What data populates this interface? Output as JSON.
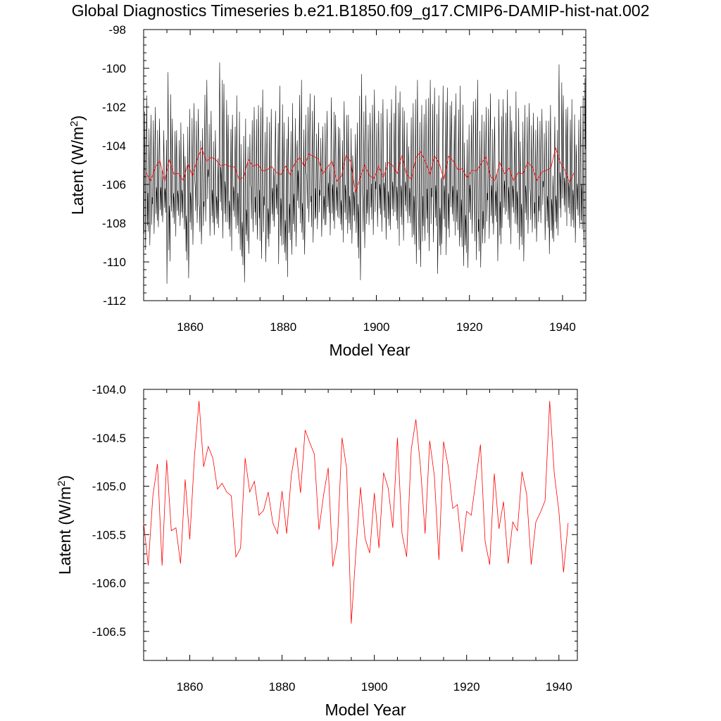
{
  "title": "Global Diagnostics Timeseries b.e21.B1850.f09_g17.CMIP6-DAMIP-hist-nat.002",
  "colors": {
    "monthly": "#000000",
    "annual": "#ff0000"
  },
  "chart_data": [
    {
      "type": "line",
      "xlabel": "Model Year",
      "ylabel": "Latent (W/m",
      "ylabel_sup": "2",
      "ylabel_end": ")",
      "xlim": [
        1850,
        1945
      ],
      "ylim": [
        -112,
        -98
      ],
      "xticks": [
        1860,
        1880,
        1900,
        1920,
        1940
      ],
      "xtick_labels": [
        "1860",
        "1880",
        "1900",
        "1920",
        "1940"
      ],
      "yticks": [
        -98,
        -100,
        -102,
        -104,
        -106,
        -108,
        -110,
        -112
      ],
      "ytick_labels": [
        "-98",
        "-100",
        "-102",
        "-104",
        "-106",
        "-108",
        "-110",
        "-112"
      ],
      "series": [
        {
          "kind": "monthly",
          "color": "#000000",
          "monthly_min_by_year": [
            -109.8,
            -109.5,
            -108.9,
            -108.5,
            -108.2,
            -111.7,
            -109.0,
            -108.4,
            -108.6,
            -111.3,
            -109.5,
            -108.3,
            -109.4,
            -108.3,
            -109.0,
            -108.9,
            -108.7,
            -109.2,
            -109.8,
            -108.6,
            -109.8,
            -111.5,
            -109.9,
            -108.8,
            -109.2,
            -110.3,
            -110.4,
            -108.9,
            -108.5,
            -110.6,
            -111.2,
            -110.0,
            -109.6,
            -108.4,
            -110.0,
            -108.3,
            -109.4,
            -108.6,
            -109.0,
            -108.4,
            -109.0,
            -108.6,
            -109.3,
            -108.9,
            -109.4,
            -108.8,
            -111.5,
            -109.7,
            -108.4,
            -109.0,
            -108.5,
            -108.8,
            -109.2,
            -108.7,
            -109.6,
            -109.3,
            -108.3,
            -109.1,
            -110.6,
            -110.7,
            -109.3,
            -109.9,
            -109.4,
            -111.1,
            -109.5,
            -110.1,
            -109.0,
            -109.6,
            -110.7,
            -110.7,
            -108.9,
            -110.4,
            -110.7,
            -109.4,
            -109.2,
            -108.9,
            -110.4,
            -108.6,
            -109.5,
            -108.3,
            -109.8,
            -110.4,
            -108.9,
            -108.8,
            -109.3,
            -108.3,
            -109.2,
            -110.0,
            -109.3,
            -109.1,
            -108.5,
            -108.5,
            -109.4,
            -108.6,
            -109.7
          ],
          "monthly_max_by_year": [
            -101.4,
            -102.4,
            -102.0,
            -102.6,
            -103.2,
            -100.2,
            -102.6,
            -103.2,
            -102.8,
            -102.1,
            -101.8,
            -102.1,
            -103.1,
            -100.6,
            -102.2,
            -103.2,
            -99.7,
            -100.8,
            -102.4,
            -102.4,
            -101.4,
            -102.6,
            -103.4,
            -102.0,
            -101.9,
            -101.1,
            -102.5,
            -102.1,
            -102.2,
            -100.9,
            -102.8,
            -102.5,
            -101.8,
            -100.6,
            -102.4,
            -101.3,
            -101.4,
            -102.8,
            -103.0,
            -102.2,
            -101.5,
            -102.4,
            -103.1,
            -101.7,
            -102.4,
            -102.8,
            -100.3,
            -101.4,
            -102.3,
            -101.1,
            -102.2,
            -101.6,
            -102.1,
            -101.6,
            -100.9,
            -101.2,
            -102.2,
            -101.8,
            -100.6,
            -101.9,
            -101.6,
            -100.6,
            -101.0,
            -101.4,
            -100.9,
            -101.0,
            -101.7,
            -101.3,
            -100.9,
            -102.9,
            -101.7,
            -100.6,
            -102.4,
            -102.0,
            -101.3,
            -102.5,
            -101.6,
            -101.6,
            -101.1,
            -102.7,
            -101.2,
            -101.9,
            -101.8,
            -102.3,
            -102.5,
            -102.1,
            -102.7,
            -101.9,
            -102.5,
            -99.8,
            -101.4,
            -102.0,
            -101.6,
            -102.0,
            -100.5
          ]
        },
        {
          "kind": "annual-mean",
          "color": "#ff0000",
          "same_values_as_lower_panel": true
        }
      ]
    },
    {
      "type": "line",
      "xlabel": "Model Year",
      "ylabel": "Latent (W/m",
      "ylabel_sup": "2",
      "ylabel_end": ")",
      "xlim": [
        1850,
        1944
      ],
      "ylim": [
        -106.8,
        -104.0
      ],
      "xticks": [
        1860,
        1880,
        1900,
        1920,
        1940
      ],
      "xtick_labels": [
        "1860",
        "1880",
        "1900",
        "1920",
        "1940"
      ],
      "yticks": [
        -104.0,
        -104.5,
        -105.0,
        -105.5,
        -106.0,
        -106.5
      ],
      "ytick_labels": [
        "-104.0",
        "-104.5",
        "-105.0",
        "-105.5",
        "-106.0",
        "-106.5"
      ],
      "series": [
        {
          "kind": "annual-mean",
          "color": "#ff0000",
          "x_start": 1850,
          "x_step": 1,
          "values": [
            -105.38,
            -105.82,
            -105.1,
            -104.77,
            -105.82,
            -104.73,
            -105.46,
            -105.43,
            -105.8,
            -104.93,
            -105.55,
            -104.7,
            -104.12,
            -104.8,
            -104.59,
            -104.71,
            -105.03,
            -104.97,
            -105.06,
            -105.1,
            -105.73,
            -105.64,
            -104.71,
            -105.06,
            -104.95,
            -105.3,
            -105.25,
            -105.06,
            -105.38,
            -105.49,
            -105.05,
            -105.49,
            -104.89,
            -104.6,
            -105.07,
            -104.42,
            -104.55,
            -104.67,
            -105.45,
            -105.09,
            -104.81,
            -105.83,
            -105.57,
            -104.5,
            -104.82,
            -106.42,
            -105.68,
            -105.01,
            -105.54,
            -105.69,
            -105.07,
            -105.64,
            -104.86,
            -105.02,
            -105.43,
            -104.5,
            -105.49,
            -105.73,
            -104.62,
            -104.31,
            -104.8,
            -105.49,
            -104.53,
            -104.89,
            -105.76,
            -104.54,
            -104.79,
            -105.23,
            -105.19,
            -105.68,
            -105.26,
            -105.3,
            -104.94,
            -104.57,
            -105.57,
            -105.81,
            -104.87,
            -105.44,
            -105.16,
            -105.8,
            -105.37,
            -105.46,
            -104.85,
            -105.08,
            -105.81,
            -105.37,
            -105.27,
            -105.15,
            -104.12,
            -104.87,
            -105.26,
            -105.89,
            -105.38
          ]
        }
      ]
    }
  ]
}
